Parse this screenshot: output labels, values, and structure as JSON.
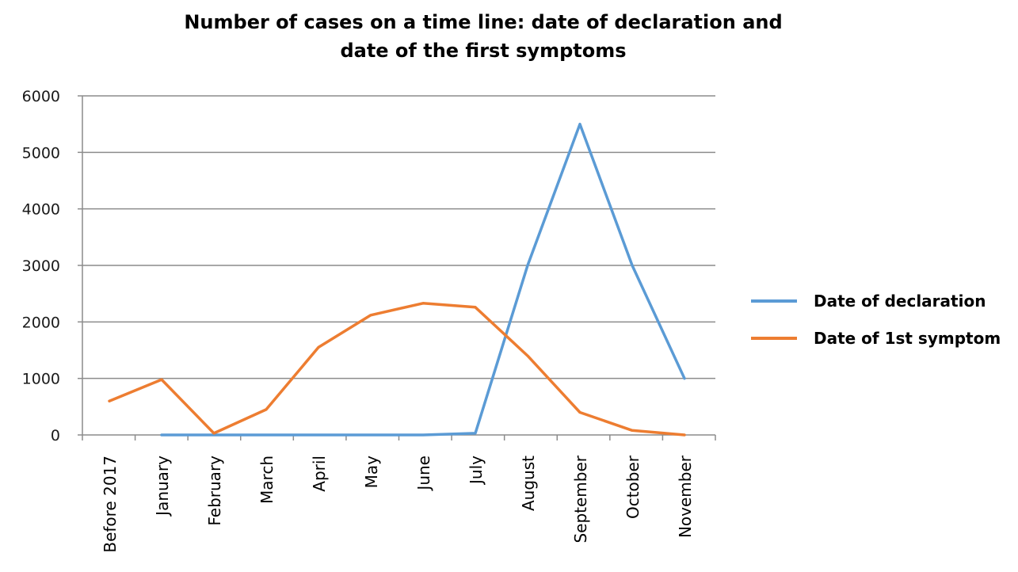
{
  "chart_data": {
    "type": "line",
    "title": "Number of cases on a time line:  date of declaration and\ndate of the first symptoms",
    "xlabel": "",
    "ylabel": "",
    "categories": [
      "Before 2017",
      "January",
      "February",
      "March",
      "April",
      "May",
      "June",
      "July",
      "August",
      "September",
      "October",
      "November"
    ],
    "ylim": [
      0,
      6000
    ],
    "yticks": [
      0,
      1000,
      2000,
      3000,
      4000,
      5000,
      6000
    ],
    "grid": true,
    "legend_position": "right",
    "series": [
      {
        "name": "Date of declaration",
        "color": "#5b9bd5",
        "values": [
          null,
          0,
          0,
          0,
          0,
          0,
          0,
          30,
          3000,
          5500,
          3000,
          1000
        ]
      },
      {
        "name": "Date of 1st symptom",
        "color": "#ed7d31",
        "values": [
          600,
          980,
          30,
          450,
          1550,
          2120,
          2330,
          2260,
          1400,
          400,
          80,
          0
        ]
      }
    ]
  }
}
